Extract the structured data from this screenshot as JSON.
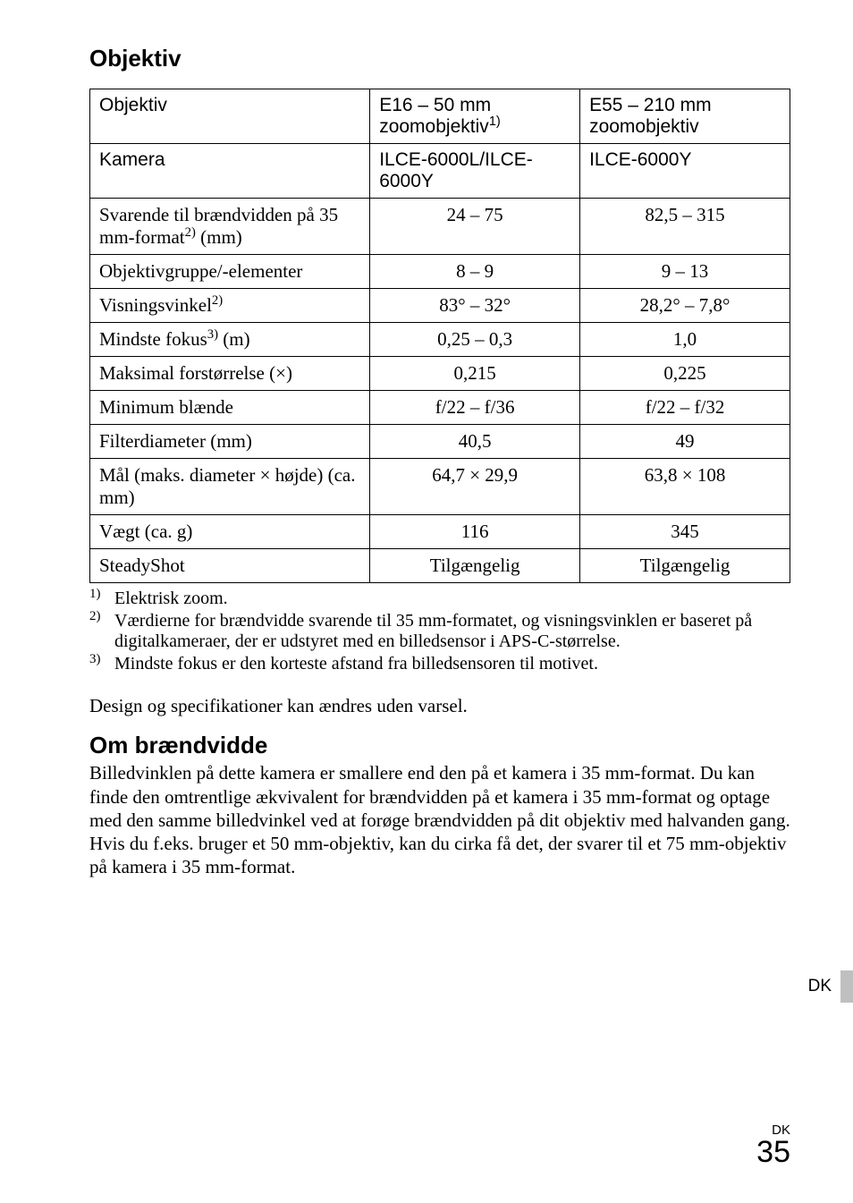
{
  "heading": "Objektiv",
  "table": {
    "header": {
      "r1": {
        "c1": "Objektiv",
        "c2_pre": "E16 – 50 mm zoomobjektiv",
        "c2_sup": "1)",
        "c3": "E55 – 210 mm zoomobjektiv"
      },
      "r2": {
        "c1": "Kamera",
        "c2": "ILCE-6000L/ILCE-6000Y",
        "c3": "ILCE-6000Y"
      }
    },
    "rows": [
      {
        "label_pre": "Svarende til brændvidden på 35 mm-format",
        "label_sup": "2)",
        "label_post": " (mm)",
        "c2": "24 – 75",
        "c3": "82,5 – 315"
      },
      {
        "label_pre": "Objektivgruppe/-elementer",
        "label_sup": "",
        "label_post": "",
        "c2": "8 – 9",
        "c3": "9 – 13"
      },
      {
        "label_pre": "Visningsvinkel",
        "label_sup": "2)",
        "label_post": "",
        "c2": "83° – 32°",
        "c3": "28,2° – 7,8°"
      },
      {
        "label_pre": "Mindste fokus",
        "label_sup": "3)",
        "label_post": " (m)",
        "c2": "0,25 – 0,3",
        "c3": "1,0"
      },
      {
        "label_pre": "Maksimal forstørrelse (×)",
        "label_sup": "",
        "label_post": "",
        "c2": "0,215",
        "c3": "0,225"
      },
      {
        "label_pre": "Minimum blænde",
        "label_sup": "",
        "label_post": "",
        "c2": "f/22 – f/36",
        "c3": "f/22 – f/32"
      },
      {
        "label_pre": "Filterdiameter (mm)",
        "label_sup": "",
        "label_post": "",
        "c2": "40,5",
        "c3": "49"
      },
      {
        "label_pre": "Mål (maks. diameter × højde) (ca. mm)",
        "label_sup": "",
        "label_post": "",
        "c2": "64,7 × 29,9",
        "c3": "63,8 × 108"
      },
      {
        "label_pre": "Vægt (ca. g)",
        "label_sup": "",
        "label_post": "",
        "c2": "116",
        "c3": "345"
      },
      {
        "label_pre": "SteadyShot",
        "label_sup": "",
        "label_post": "",
        "c2": "Tilgængelig",
        "c3": "Tilgængelig"
      }
    ]
  },
  "footnotes": [
    {
      "num": "1)",
      "text": "Elektrisk zoom."
    },
    {
      "num": "2)",
      "text": "Værdierne for brændvidde svarende til 35 mm-formatet, og visningsvinklen er baseret på digitalkameraer, der er udstyret med en billedsensor i APS-C-størrelse."
    },
    {
      "num": "3)",
      "text": "Mindste fokus er den korteste afstand fra billedsensoren til motivet."
    }
  ],
  "notice": "Design og specifikationer kan ændres uden varsel.",
  "sub_heading": "Om brændvidde",
  "paragraph": "Billedvinklen på dette kamera er smallere end den på et kamera i 35 mm-format. Du kan finde den omtrentlige ækvivalent for brændvidden på et kamera i 35 mm-format og optage med den samme billedvinkel ved at forøge brændvidden på dit objektiv med halvanden gang.\nHvis du f.eks. bruger et 50 mm-objektiv, kan du cirka få det, der svarer til et 75 mm-objektiv på kamera i 35 mm-format.",
  "side_label": "DK",
  "page_locale": "DK",
  "page_number": "35",
  "colors": {
    "background": "#ffffff",
    "text": "#000000",
    "tab": "#bfbfbf",
    "border": "#000000"
  }
}
